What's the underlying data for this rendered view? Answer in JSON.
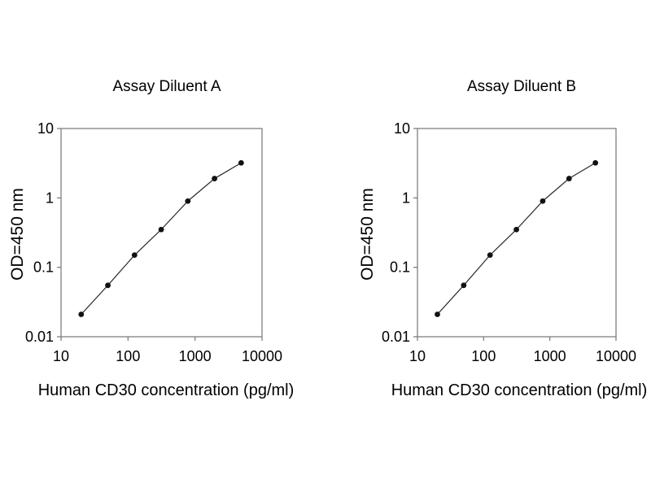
{
  "page": {
    "background": "#ffffff",
    "text_color": "#000000"
  },
  "chart_data": [
    {
      "id": "A",
      "type": "line",
      "title": "Assay Diluent A",
      "xlabel": "Human CD30 concentration (pg/ml)",
      "ylabel": "OD=450 nm",
      "x_scale": "log",
      "y_scale": "log",
      "xlim": [
        10,
        10000
      ],
      "ylim": [
        0.01,
        10
      ],
      "x_ticks": [
        10,
        100,
        1000,
        10000
      ],
      "y_ticks": [
        10,
        1,
        0.1,
        0.01
      ],
      "x": [
        20,
        50,
        125,
        312.5,
        781,
        1953,
        4883
      ],
      "y": [
        0.021,
        0.055,
        0.15,
        0.35,
        0.9,
        1.9,
        3.2
      ],
      "grid": false,
      "legend": "none",
      "axis_color": "#7f7f7f",
      "line_color": "#2a2a2a",
      "marker_color": "#111111"
    },
    {
      "id": "B",
      "type": "line",
      "title": "Assay Diluent B",
      "xlabel": "Human CD30 concentration (pg/ml)",
      "ylabel": "OD=450 nm",
      "x_scale": "log",
      "y_scale": "log",
      "xlim": [
        10,
        10000
      ],
      "ylim": [
        0.01,
        10
      ],
      "x_ticks": [
        10,
        100,
        1000,
        10000
      ],
      "y_ticks": [
        10,
        1,
        0.1,
        0.01
      ],
      "x": [
        20,
        50,
        125,
        312.5,
        781,
        1953,
        4883
      ],
      "y": [
        0.021,
        0.055,
        0.15,
        0.35,
        0.9,
        1.9,
        3.2
      ],
      "grid": false,
      "legend": "none",
      "axis_color": "#7f7f7f",
      "line_color": "#2a2a2a",
      "marker_color": "#111111"
    }
  ]
}
